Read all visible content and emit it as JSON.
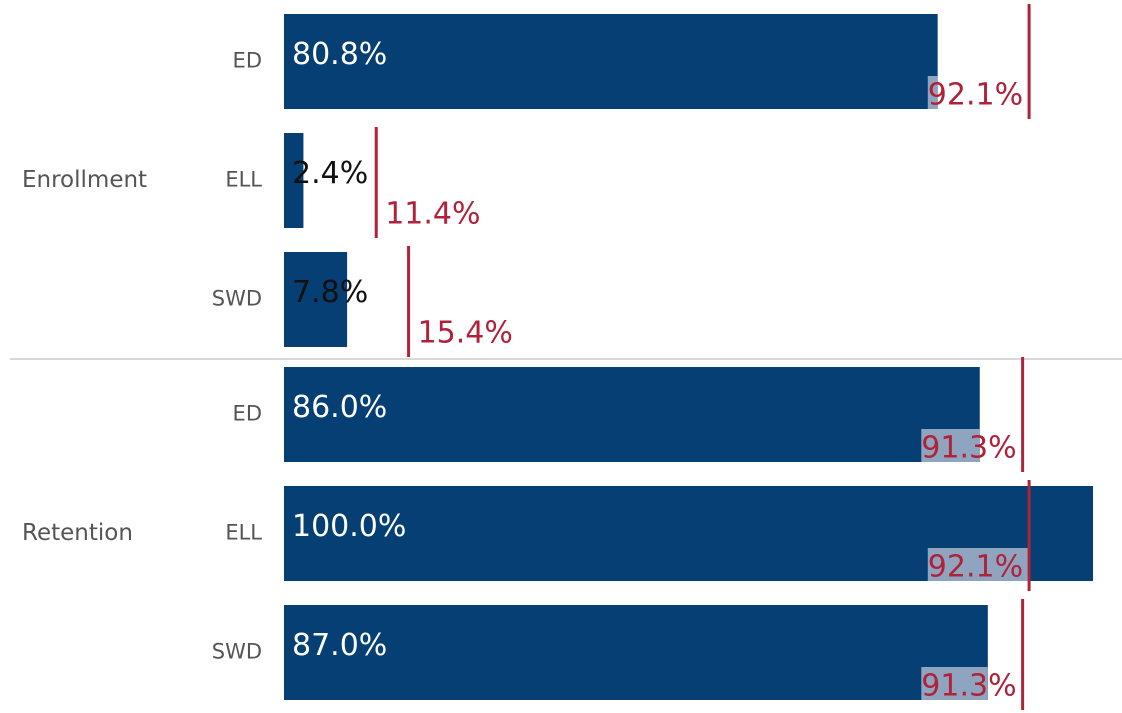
{
  "chart_data": {
    "type": "bar",
    "xlim": [
      0,
      100
    ],
    "bar_color": "#063f73",
    "target_color": "#b0223a",
    "highlight_color": "#8fa5bf",
    "groups": [
      {
        "name": "Enrollment",
        "categories": [
          "ED",
          "ELL",
          "SWD"
        ],
        "values": [
          80.8,
          2.4,
          7.8
        ],
        "value_labels": [
          "80.8%",
          "2.4%",
          "7.8%"
        ],
        "targets": [
          92.1,
          11.4,
          15.4
        ],
        "target_labels": [
          "92.1%",
          "11.4%",
          "15.4%"
        ]
      },
      {
        "name": "Retention",
        "categories": [
          "ED",
          "ELL",
          "SWD"
        ],
        "values": [
          86.0,
          100.0,
          87.0
        ],
        "value_labels": [
          "86.0%",
          "100.0%",
          "87.0%"
        ],
        "targets": [
          91.3,
          92.1,
          91.3
        ],
        "target_labels": [
          "91.3%",
          "92.1%",
          "91.3%"
        ]
      }
    ]
  }
}
